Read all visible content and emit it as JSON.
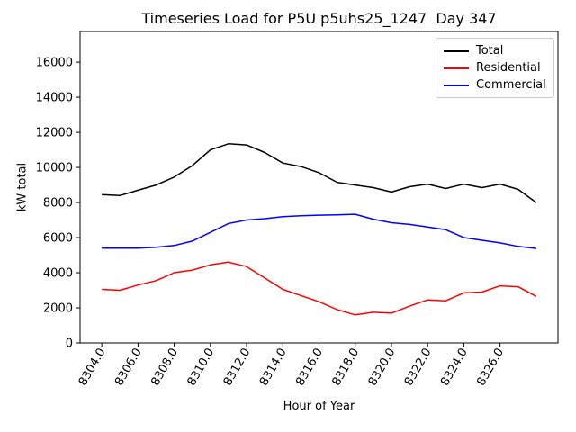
{
  "figure": {
    "title": "Timeseries Load for P5U p5uhs25_1247  Day 347",
    "xlabel": "Hour of Year",
    "ylabel": "kW total"
  },
  "legend": {
    "position": "upper right",
    "entries": [
      {
        "label": "Total",
        "color": "#000000"
      },
      {
        "label": "Residential",
        "color": "#ff0000"
      },
      {
        "label": "Commercial",
        "color": "#0000ff"
      }
    ]
  },
  "chart_data": {
    "type": "line",
    "title": "Timeseries Load for P5U p5uhs25_1247  Day 347",
    "xlabel": "Hour of Year",
    "ylabel": "kW total",
    "x": [
      8304,
      8305,
      8306,
      8307,
      8308,
      8309,
      8310,
      8311,
      8312,
      8313,
      8314,
      8315,
      8316,
      8317,
      8318,
      8319,
      8320,
      8321,
      8322,
      8323,
      8324,
      8325,
      8326,
      8327,
      8328
    ],
    "series": [
      {
        "name": "Total",
        "color": "#000000",
        "values": [
          8450,
          8400,
          8700,
          9000,
          9450,
          10100,
          11000,
          11350,
          11280,
          10850,
          10250,
          10050,
          9700,
          9150,
          9000,
          8850,
          8600,
          8900,
          9050,
          8800,
          9050,
          8850,
          9050,
          8750,
          8000
        ]
      },
      {
        "name": "Residential",
        "color": "#ff0000",
        "values": [
          3050,
          3000,
          3300,
          3550,
          4000,
          4150,
          4450,
          4600,
          4350,
          3700,
          3050,
          2700,
          2350,
          1900,
          1600,
          1750,
          1700,
          2100,
          2450,
          2400,
          2850,
          2900,
          3250,
          3200,
          2650
        ]
      },
      {
        "name": "Commercial",
        "color": "#0000ff",
        "values": [
          5400,
          5400,
          5400,
          5450,
          5550,
          5800,
          6300,
          6800,
          7000,
          7080,
          7200,
          7250,
          7280,
          7300,
          7330,
          7050,
          6850,
          6750,
          6600,
          6450,
          6000,
          5850,
          5700,
          5500,
          5380
        ]
      }
    ],
    "xlim": [
      8302.8,
      8329.2
    ],
    "ylim": [
      0,
      17750
    ],
    "xticks": [
      8304,
      8306,
      8308,
      8310,
      8312,
      8314,
      8316,
      8318,
      8320,
      8322,
      8324,
      8326
    ],
    "xtick_labels": [
      "8304.0",
      "8306.0",
      "8308.0",
      "8310.0",
      "8312.0",
      "8314.0",
      "8316.0",
      "8318.0",
      "8320.0",
      "8322.0",
      "8324.0",
      "8326.0"
    ],
    "yticks": [
      0,
      2000,
      4000,
      6000,
      8000,
      10000,
      12000,
      14000,
      16000
    ],
    "xtick_rotation_deg": 60,
    "grid": false,
    "legend_position": "upper right",
    "line_width": 1.5
  }
}
